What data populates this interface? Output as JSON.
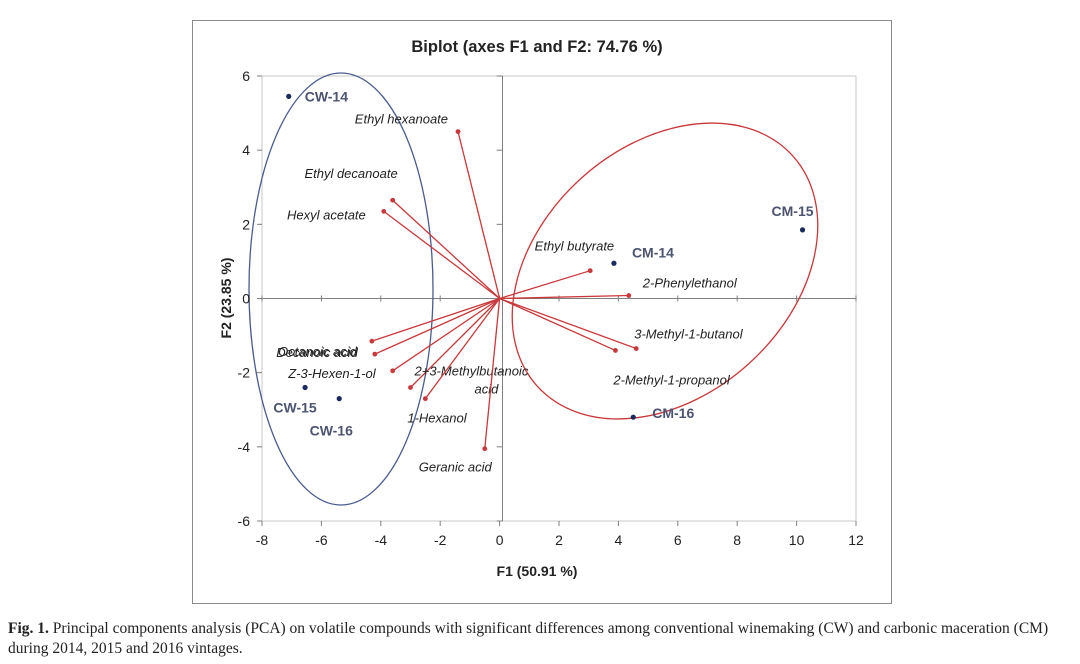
{
  "figure": {
    "caption_label": "Fig. 1.",
    "caption_text": " Principal components analysis (PCA) on volatile compounds with significant differences among conventional winemaking (CW) and carbonic maceration (CM) during 2014, 2015 and 2016 vintages."
  },
  "colors": {
    "loading": "#c9383a",
    "sample": "#1a2a5e",
    "cw_ellipse": "#4a5b8f",
    "cm_ellipse": "#c9383a",
    "axis": "#7f7f7f",
    "title": "#222222"
  },
  "chart_data": {
    "type": "scatter",
    "title": "Biplot (axes F1 and F2: 74.76 %)",
    "xlabel": "F1 (50.91 %)",
    "ylabel": "F2 (23.85 %)",
    "xlim": [
      -8,
      12
    ],
    "ylim": [
      -6,
      6
    ],
    "xticks": [
      -8,
      -6,
      -4,
      -2,
      0,
      2,
      4,
      6,
      8,
      10,
      12
    ],
    "yticks": [
      -6,
      -4,
      -2,
      0,
      2,
      4,
      6
    ],
    "grid": false,
    "loadings": [
      {
        "name": "Ethyl hexanoate",
        "x": -1.4,
        "y": 4.5
      },
      {
        "name": "Ethyl decanoate",
        "x": -3.6,
        "y": 2.65
      },
      {
        "name": "Hexyl acetate",
        "x": -3.9,
        "y": 2.35
      },
      {
        "name": "Ethyl butyrate",
        "x": 3.05,
        "y": 0.75
      },
      {
        "name": "2-Phenylethanol",
        "x": 4.35,
        "y": 0.08
      },
      {
        "name": "3-Methyl-1-butanol",
        "x": 4.6,
        "y": -1.35
      },
      {
        "name": "2-Methyl-1-propanol",
        "x": 3.9,
        "y": -1.4
      },
      {
        "name": "Decanoic acid",
        "x": -4.3,
        "y": -1.15
      },
      {
        "name": "Octanoic acid",
        "x": -4.2,
        "y": -1.5
      },
      {
        "name": "Z-3-Hexen-1-ol",
        "x": -3.6,
        "y": -1.95
      },
      {
        "name": "2+3-Methylbutanoic acid",
        "x": -3.0,
        "y": -2.4
      },
      {
        "name": "1-Hexanol",
        "x": -2.5,
        "y": -2.7
      },
      {
        "name": "Geranic acid",
        "x": -0.5,
        "y": -4.05
      }
    ],
    "samples": [
      {
        "name": "CW-14",
        "x": -7.1,
        "y": 5.45
      },
      {
        "name": "CW-15",
        "x": -6.55,
        "y": -2.4
      },
      {
        "name": "CW-16",
        "x": -5.4,
        "y": -2.7
      },
      {
        "name": "CM-14",
        "x": 3.85,
        "y": 0.95
      },
      {
        "name": "CM-15",
        "x": 10.2,
        "y": 1.85
      },
      {
        "name": "CM-16",
        "x": 4.5,
        "y": -3.2
      }
    ]
  }
}
